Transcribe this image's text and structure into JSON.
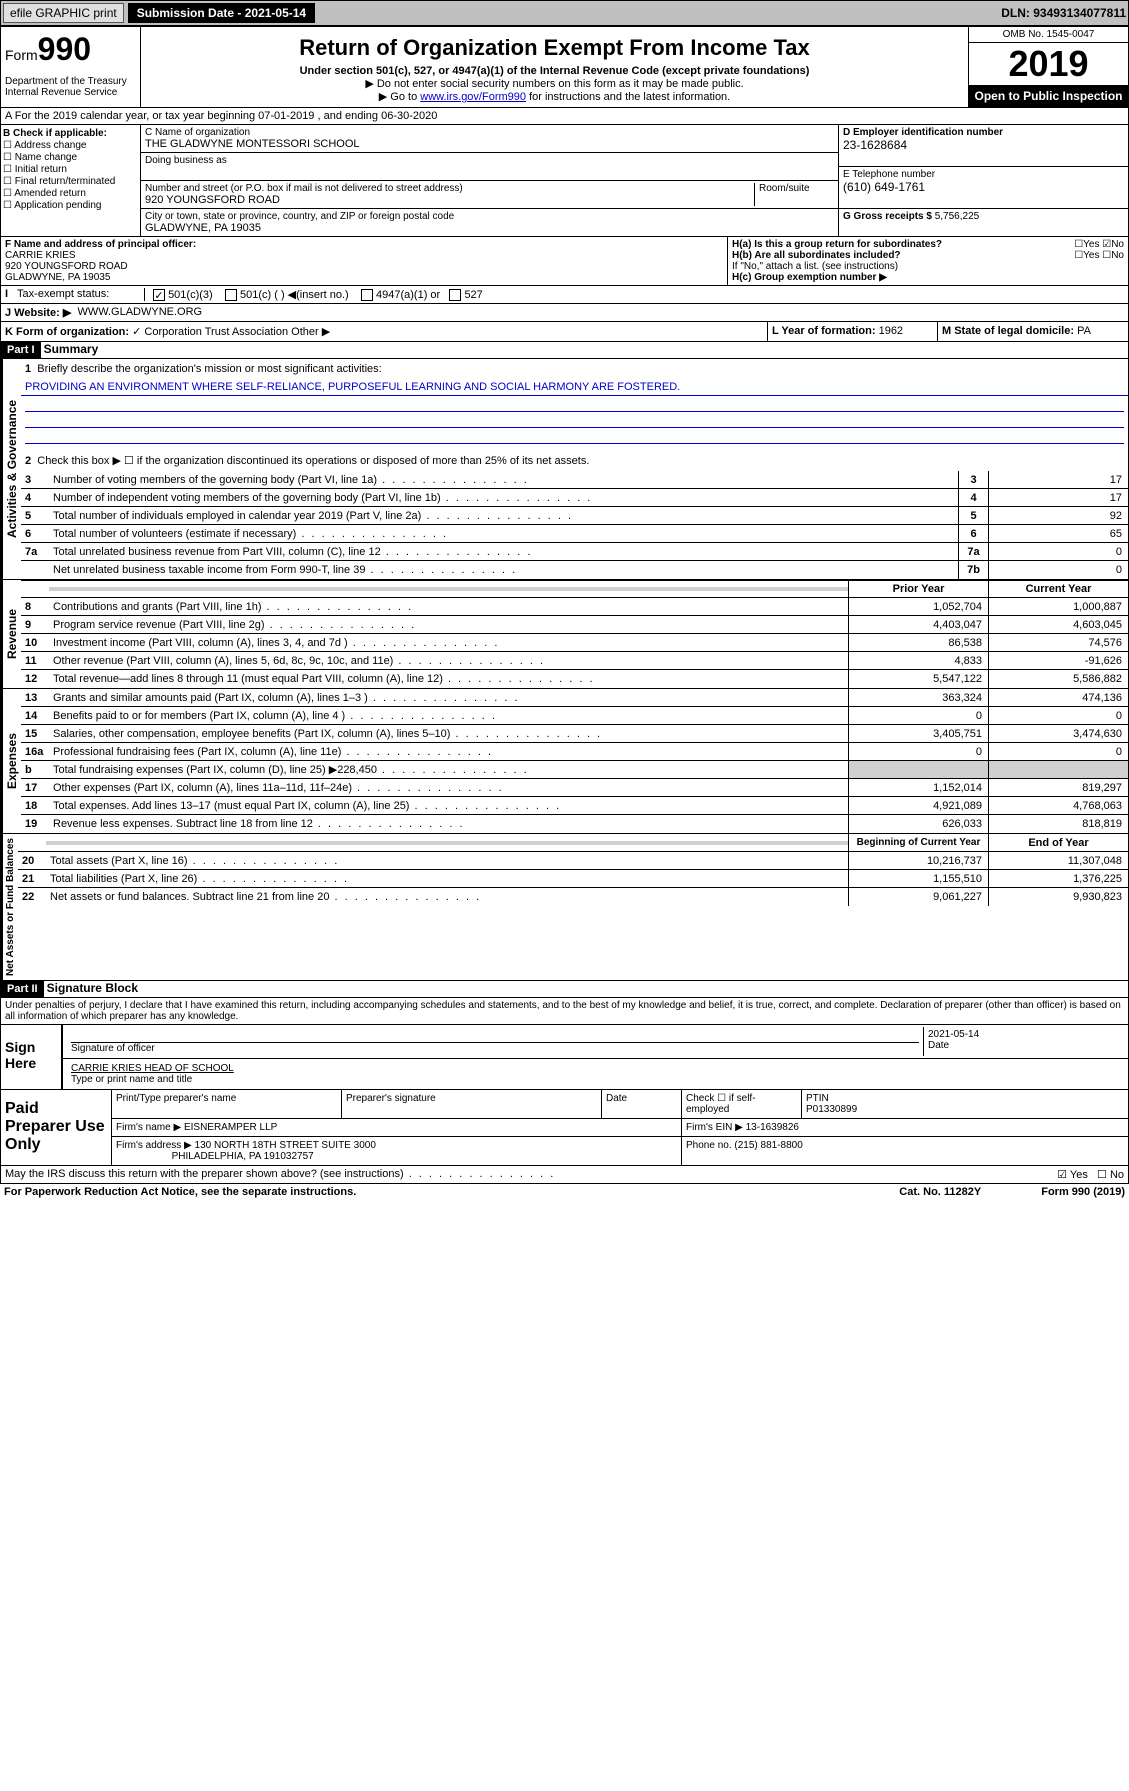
{
  "topbar": {
    "efile": "efile GRAPHIC print",
    "submission_label": "Submission Date - 2021-05-14",
    "dln": "DLN: 93493134077811"
  },
  "header": {
    "form_word": "Form",
    "form_num": "990",
    "dept": "Department of the Treasury\nInternal Revenue Service",
    "title": "Return of Organization Exempt From Income Tax",
    "sub1": "Under section 501(c), 527, or 4947(a)(1) of the Internal Revenue Code (except private foundations)",
    "sub2": "▶ Do not enter social security numbers on this form as it may be made public.",
    "sub3_pre": "▶ Go to ",
    "sub3_link": "www.irs.gov/Form990",
    "sub3_post": " for instructions and the latest information.",
    "omb": "OMB No. 1545-0047",
    "year": "2019",
    "open": "Open to Public Inspection"
  },
  "rowA": "A For the 2019 calendar year, or tax year beginning 07-01-2019   , and ending 06-30-2020",
  "blockB": {
    "title": "B Check if applicable:",
    "items": [
      "Address change",
      "Name change",
      "Initial return",
      "Final return/terminated",
      "Amended return",
      "Application pending"
    ]
  },
  "blockC": {
    "name_lbl": "C Name of organization",
    "name": "THE GLADWYNE MONTESSORI SCHOOL",
    "dba_lbl": "Doing business as",
    "addr_lbl": "Number and street (or P.O. box if mail is not delivered to street address)",
    "room_lbl": "Room/suite",
    "addr": "920 YOUNGSFORD ROAD",
    "city_lbl": "City or town, state or province, country, and ZIP or foreign postal code",
    "city": "GLADWYNE, PA  19035"
  },
  "blockDE": {
    "d_lbl": "D Employer identification number",
    "d_val": "23-1628684",
    "e_lbl": "E Telephone number",
    "e_val": "(610) 649-1761",
    "g_lbl": "G Gross receipts $",
    "g_val": "5,756,225"
  },
  "officer": {
    "lbl": "F  Name and address of principal officer:",
    "name": "CARRIE KRIES",
    "addr1": "920 YOUNGSFORD ROAD",
    "addr2": "GLADWYNE, PA  19035"
  },
  "suborg": {
    "ha": "H(a)  Is this a group return for subordinates?",
    "hb": "H(b)  Are all subordinates included?",
    "hb_note": "If \"No,\" attach a list. (see instructions)",
    "hc": "H(c)  Group exemption number ▶"
  },
  "tax_exempt": {
    "lbl": "Tax-exempt status:",
    "opt1": "501(c)(3)",
    "opt2": "501(c) (  ) ◀(insert no.)",
    "opt3": "4947(a)(1) or",
    "opt4": "527"
  },
  "website": {
    "lbl": "J   Website: ▶",
    "val": "WWW.GLADWYNE.ORG"
  },
  "rowK": {
    "lbl": "K Form of organization:",
    "opts": [
      "Corporation",
      "Trust",
      "Association",
      "Other ▶"
    ],
    "l_lbl": "L Year of formation:",
    "l_val": "1962",
    "m_lbl": "M State of legal domicile:",
    "m_val": "PA"
  },
  "part1": {
    "bar": "Part I",
    "title": "Summary",
    "q1": "Briefly describe the organization's mission or most significant activities:",
    "mission": "PROVIDING AN ENVIRONMENT WHERE SELF-RELIANCE, PURPOSEFUL LEARNING AND SOCIAL HARMONY ARE FOSTERED.",
    "q2": "Check this box ▶ ☐  if the organization discontinued its operations or disposed of more than 25% of its net assets."
  },
  "gov_lines": [
    {
      "n": "3",
      "d": "Number of voting members of the governing body (Part VI, line 1a)",
      "box": "3",
      "v": "17"
    },
    {
      "n": "4",
      "d": "Number of independent voting members of the governing body (Part VI, line 1b)",
      "box": "4",
      "v": "17"
    },
    {
      "n": "5",
      "d": "Total number of individuals employed in calendar year 2019 (Part V, line 2a)",
      "box": "5",
      "v": "92"
    },
    {
      "n": "6",
      "d": "Total number of volunteers (estimate if necessary)",
      "box": "6",
      "v": "65"
    },
    {
      "n": "7a",
      "d": "Total unrelated business revenue from Part VIII, column (C), line 12",
      "box": "7a",
      "v": "0"
    },
    {
      "n": "",
      "d": "Net unrelated business taxable income from Form 990-T, line 39",
      "box": "7b",
      "v": "0"
    }
  ],
  "col_hdr": {
    "prior": "Prior Year",
    "current": "Current Year"
  },
  "rev_lines": [
    {
      "n": "8",
      "d": "Contributions and grants (Part VIII, line 1h)",
      "p": "1,052,704",
      "c": "1,000,887"
    },
    {
      "n": "9",
      "d": "Program service revenue (Part VIII, line 2g)",
      "p": "4,403,047",
      "c": "4,603,045"
    },
    {
      "n": "10",
      "d": "Investment income (Part VIII, column (A), lines 3, 4, and 7d )",
      "p": "86,538",
      "c": "74,576"
    },
    {
      "n": "11",
      "d": "Other revenue (Part VIII, column (A), lines 5, 6d, 8c, 9c, 10c, and 11e)",
      "p": "4,833",
      "c": "-91,626"
    },
    {
      "n": "12",
      "d": "Total revenue—add lines 8 through 11 (must equal Part VIII, column (A), line 12)",
      "p": "5,547,122",
      "c": "5,586,882"
    }
  ],
  "exp_lines": [
    {
      "n": "13",
      "d": "Grants and similar amounts paid (Part IX, column (A), lines 1–3 )",
      "p": "363,324",
      "c": "474,136"
    },
    {
      "n": "14",
      "d": "Benefits paid to or for members (Part IX, column (A), line 4 )",
      "p": "0",
      "c": "0"
    },
    {
      "n": "15",
      "d": "Salaries, other compensation, employee benefits (Part IX, column (A), lines 5–10)",
      "p": "3,405,751",
      "c": "3,474,630"
    },
    {
      "n": "16a",
      "d": "Professional fundraising fees (Part IX, column (A), line 11e)",
      "p": "0",
      "c": "0"
    },
    {
      "n": "b",
      "d": "Total fundraising expenses (Part IX, column (D), line 25) ▶228,450",
      "p": "",
      "c": "",
      "shade": true
    },
    {
      "n": "17",
      "d": "Other expenses (Part IX, column (A), lines 11a–11d, 11f–24e)",
      "p": "1,152,014",
      "c": "819,297"
    },
    {
      "n": "18",
      "d": "Total expenses. Add lines 13–17 (must equal Part IX, column (A), line 25)",
      "p": "4,921,089",
      "c": "4,768,063"
    },
    {
      "n": "19",
      "d": "Revenue less expenses. Subtract line 18 from line 12",
      "p": "626,033",
      "c": "818,819"
    }
  ],
  "net_hdr": {
    "begin": "Beginning of Current Year",
    "end": "End of Year"
  },
  "net_lines": [
    {
      "n": "20",
      "d": "Total assets (Part X, line 16)",
      "p": "10,216,737",
      "c": "11,307,048"
    },
    {
      "n": "21",
      "d": "Total liabilities (Part X, line 26)",
      "p": "1,155,510",
      "c": "1,376,225"
    },
    {
      "n": "22",
      "d": "Net assets or fund balances. Subtract line 21 from line 20",
      "p": "9,061,227",
      "c": "9,930,823"
    }
  ],
  "part2": {
    "bar": "Part II",
    "title": "Signature Block",
    "decl": "Under penalties of perjury, I declare that I have examined this return, including accompanying schedules and statements, and to the best of my knowledge and belief, it is true, correct, and complete. Declaration of preparer (other than officer) is based on all information of which preparer has any knowledge."
  },
  "sign": {
    "label": "Sign Here",
    "sig_lbl": "Signature of officer",
    "date_lbl": "Date",
    "date_val": "2021-05-14",
    "name": "CARRIE KRIES HEAD OF SCHOOL",
    "name_lbl": "Type or print name and title"
  },
  "paid": {
    "label": "Paid Preparer Use Only",
    "h1": "Print/Type preparer's name",
    "h2": "Preparer's signature",
    "h3": "Date",
    "h4": "Check ☐ if self-employed",
    "h5_lbl": "PTIN",
    "h5_val": "P01330899",
    "firm_lbl": "Firm's name    ▶",
    "firm_val": "EISNERAMPER LLP",
    "ein_lbl": "Firm's EIN ▶",
    "ein_val": "13-1639826",
    "addr_lbl": "Firm's address ▶",
    "addr_val": "130 NORTH 18TH STREET SUITE 3000",
    "addr_val2": "PHILADELPHIA, PA  191032757",
    "phone_lbl": "Phone no.",
    "phone_val": "(215) 881-8800"
  },
  "footer": {
    "discuss": "May the IRS discuss this return with the preparer shown above? (see instructions)",
    "yes": "Yes",
    "no": "No",
    "pra": "For Paperwork Reduction Act Notice, see the separate instructions.",
    "cat": "Cat. No. 11282Y",
    "form": "Form 990 (2019)"
  },
  "sidelabels": {
    "gov": "Activities & Governance",
    "rev": "Revenue",
    "exp": "Expenses",
    "net": "Net Assets or Fund Balances"
  },
  "colors": {
    "link": "#0000cc",
    "shade": "#d0d0d0"
  }
}
